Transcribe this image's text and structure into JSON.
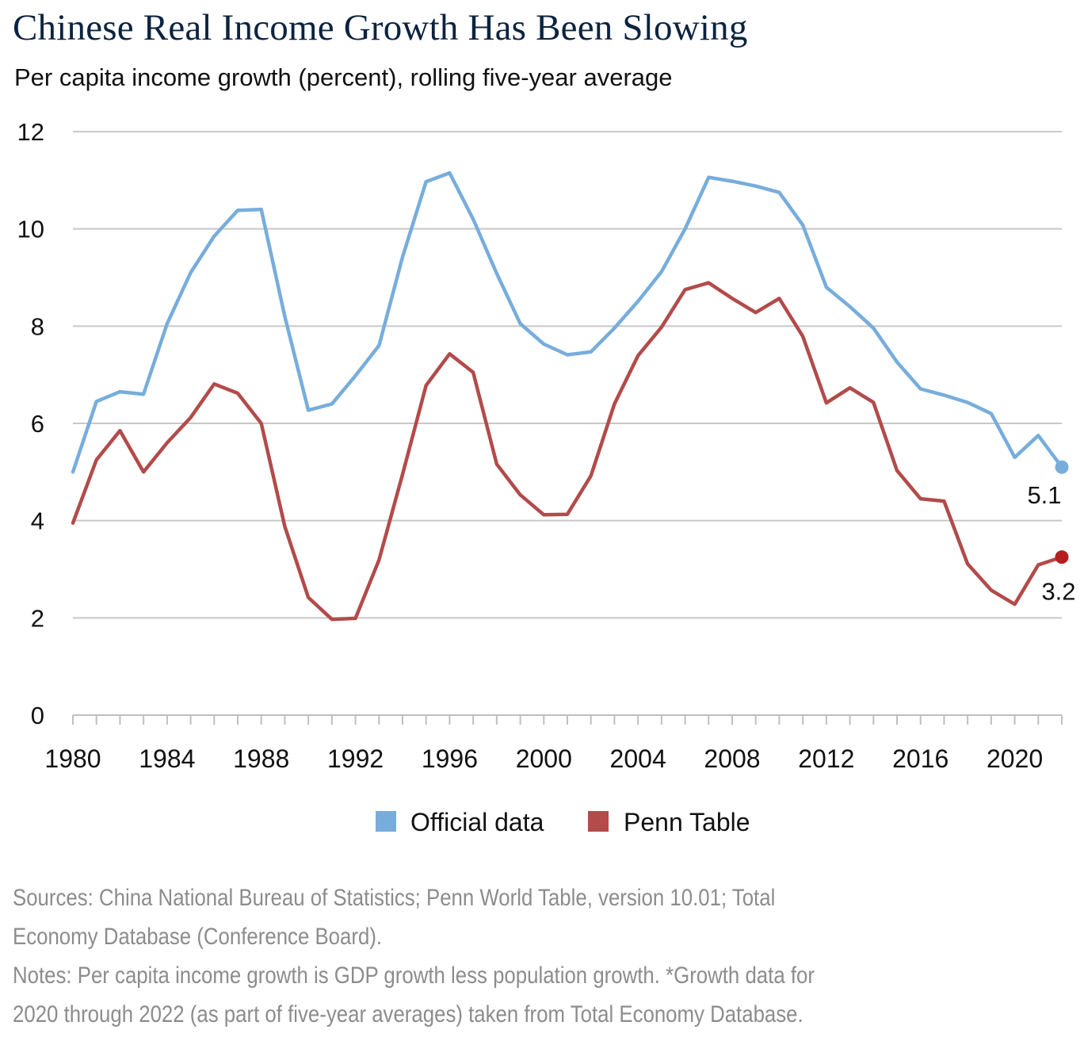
{
  "title": "Chinese Real Income Growth Has Been Slowing",
  "subtitle": "Per capita income growth (percent), rolling five-year average",
  "colors": {
    "official": "#77ADDC",
    "penn": "#B24B4A",
    "penn_end_dot": "#B51F1F",
    "grid": "#c8c8c8",
    "footnote": "#8c8c8c",
    "title": "#0b2340"
  },
  "chart_data": {
    "type": "line",
    "x": [
      1980,
      1981,
      1982,
      1983,
      1984,
      1985,
      1986,
      1987,
      1988,
      1989,
      1990,
      1991,
      1992,
      1993,
      1994,
      1995,
      1996,
      1997,
      1998,
      1999,
      2000,
      2001,
      2002,
      2003,
      2004,
      2005,
      2006,
      2007,
      2008,
      2009,
      2010,
      2011,
      2012,
      2013,
      2014,
      2015,
      2016,
      2017,
      2018,
      2019,
      2020,
      2021,
      2022
    ],
    "series": [
      {
        "name": "Official data",
        "color": "#77ADDC",
        "values": [
          5.0,
          6.45,
          6.65,
          6.6,
          8.05,
          9.1,
          9.85,
          10.38,
          10.4,
          8.2,
          6.27,
          6.4,
          6.98,
          7.6,
          9.42,
          10.97,
          11.15,
          10.2,
          9.08,
          8.05,
          7.63,
          7.41,
          7.47,
          7.96,
          8.51,
          9.12,
          10.0,
          11.06,
          10.98,
          10.88,
          10.75,
          10.08,
          8.8,
          8.4,
          7.96,
          7.26,
          6.71,
          6.58,
          6.43,
          6.2,
          5.3,
          5.75,
          5.1
        ],
        "end_label": "5.1"
      },
      {
        "name": "Penn Table",
        "color": "#B24B4A",
        "values": [
          3.95,
          5.25,
          5.85,
          5.0,
          5.6,
          6.12,
          6.81,
          6.62,
          6.0,
          3.88,
          2.42,
          1.97,
          1.99,
          3.19,
          4.95,
          6.78,
          7.43,
          7.05,
          5.16,
          4.53,
          4.12,
          4.13,
          4.92,
          6.4,
          7.39,
          7.98,
          8.75,
          8.89,
          8.57,
          8.28,
          8.57,
          7.79,
          6.42,
          6.73,
          6.43,
          5.03,
          4.45,
          4.4,
          3.11,
          2.57,
          2.28,
          3.09,
          3.25
        ],
        "end_label": "3.2"
      }
    ],
    "x_ticks": [
      "1980",
      "1984",
      "1988",
      "1992",
      "1996",
      "2000",
      "2004",
      "2008",
      "2012",
      "2016",
      "2020"
    ],
    "y_ticks": [
      "0",
      "2",
      "4",
      "6",
      "8",
      "10",
      "12"
    ],
    "xlim": [
      1980,
      2022
    ],
    "ylim": [
      0,
      12
    ],
    "grid": "horizontal",
    "legend_position": "bottom-center",
    "legend": [
      "Official data",
      "Penn Table"
    ]
  },
  "footnotes": {
    "sources_line1": "Sources: China National Bureau of Statistics; Penn World Table, version 10.01; Total",
    "sources_line2": "Economy Database (Conference Board).",
    "notes_line1": "Notes: Per capita income growth is GDP growth less population growth. *Growth data for",
    "notes_line2": "2020 through 2022 (as part of five-year averages) taken from Total Economy Database."
  }
}
